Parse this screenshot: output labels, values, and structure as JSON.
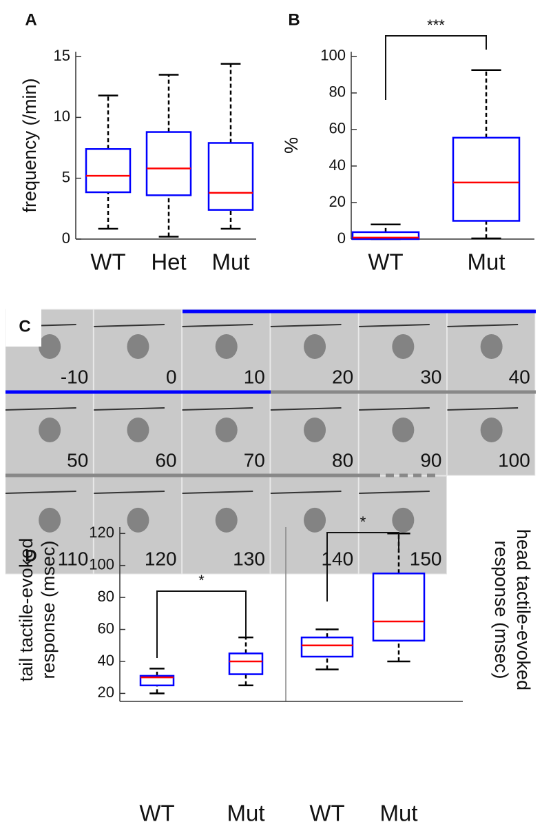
{
  "chart_data": [
    {
      "type": "box",
      "panel": "A",
      "ylabel": "frequency (/min)",
      "categories": [
        "WT",
        "Het",
        "Mut"
      ],
      "ylim": [
        0,
        15.4
      ],
      "yticks": [
        0,
        5,
        10,
        15
      ],
      "box_color": "#0000ff",
      "median_color": "#ff0000",
      "whisker_color": "#000000",
      "boxes": [
        {
          "min": 0.85,
          "q1": 3.85,
          "median": 5.2,
          "q3": 7.4,
          "max": 11.8
        },
        {
          "min": 0.2,
          "q1": 3.6,
          "median": 5.8,
          "q3": 8.8,
          "max": 13.5
        },
        {
          "min": 0.85,
          "q1": 2.4,
          "median": 3.8,
          "q3": 7.9,
          "max": 14.4
        }
      ]
    },
    {
      "type": "box",
      "panel": "B",
      "ylabel": "%",
      "categories": [
        "WT",
        "Mut"
      ],
      "ylim": [
        0,
        102.6
      ],
      "yticks": [
        0,
        20,
        40,
        60,
        80,
        100
      ],
      "annotation": "***",
      "box_color": "#0000ff",
      "median_color": "#ff0000",
      "whisker_color": "#000000",
      "boxes": [
        {
          "min": 0,
          "q1": 0,
          "median": 0.8,
          "q3": 3.8,
          "max": 8
        },
        {
          "min": 0.4,
          "q1": 10,
          "median": 31,
          "q3": 55.5,
          "max": 92.5
        }
      ]
    },
    {
      "type": "box",
      "panel": "D",
      "ylabel": [
        "tail  tactile-evoked",
        "response (msec)"
      ],
      "categories": [
        "WT",
        "Mut"
      ],
      "ylim": [
        15,
        124
      ],
      "yticks": [
        20,
        40,
        60,
        80,
        100,
        120
      ],
      "annotation": "*",
      "box_color": "#0000ff",
      "median_color": "#ff0000",
      "whisker_color": "#000000",
      "boxes": [
        {
          "min": 20,
          "q1": 25,
          "median": 30,
          "q3": 31,
          "max": 35.5
        },
        {
          "min": 25,
          "q1": 32,
          "median": 40,
          "q3": 45,
          "max": 55
        }
      ]
    },
    {
      "type": "box",
      "ylabel": [
        "head  tactile-evoked",
        "response (msec)"
      ],
      "categories": [
        "WT",
        "Mut"
      ],
      "ylim": [
        15,
        124
      ],
      "annotation": "*",
      "box_color": "#0000ff",
      "median_color": "#ff0000",
      "whisker_color": "#000000",
      "boxes": [
        {
          "min": 35,
          "q1": 43,
          "median": 50,
          "q3": 55,
          "max": 60
        },
        {
          "min": 40,
          "q1": 53,
          "median": 65,
          "q3": 95,
          "max": 120
        }
      ]
    }
  ],
  "panel_c": {
    "label": "C",
    "frames": [
      -10,
      0,
      10,
      20,
      30,
      40,
      50,
      60,
      70,
      80,
      90,
      100,
      110,
      120,
      130,
      140,
      150
    ]
  }
}
